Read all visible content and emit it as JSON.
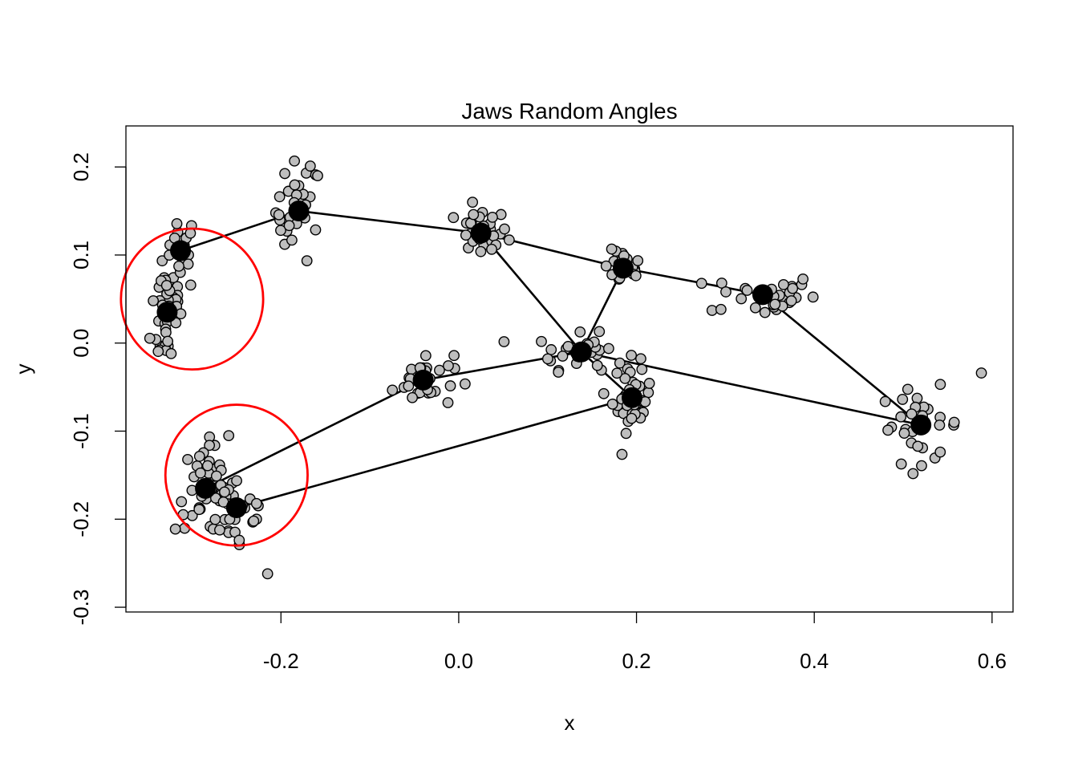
{
  "chart_data": {
    "type": "scatter",
    "title": "Jaws Random Angles",
    "xlabel": "x",
    "ylabel": "y",
    "xlim": [
      -0.3744,
      0.6236
    ],
    "ylim": [
      -0.3054,
      0.2466
    ],
    "x_ticks": [
      -0.2,
      0.0,
      0.2,
      0.4,
      0.6
    ],
    "x_tick_labels": [
      "-0.2",
      "0.0",
      "0.2",
      "0.4",
      "0.6"
    ],
    "y_ticks": [
      -0.3,
      -0.2,
      -0.1,
      0.0,
      0.1,
      0.2
    ],
    "y_tick_labels": [
      "-0.3",
      "-0.2",
      "-0.1",
      "0.0",
      "0.1",
      "0.2"
    ],
    "grid": false,
    "legend": "none",
    "colors": {
      "cloud_fill": "#bebebe",
      "outline": "#000000",
      "mean_point": "#000000",
      "highlight_circle": "#ff0000"
    },
    "mean_points": [
      {
        "x": -0.313,
        "y": 0.105
      },
      {
        "x": -0.18,
        "y": 0.15
      },
      {
        "x": 0.025,
        "y": 0.125
      },
      {
        "x": 0.185,
        "y": 0.085
      },
      {
        "x": 0.342,
        "y": 0.055
      },
      {
        "x": -0.328,
        "y": 0.035
      },
      {
        "x": 0.138,
        "y": -0.01
      },
      {
        "x": -0.04,
        "y": -0.042
      },
      {
        "x": 0.195,
        "y": -0.062
      },
      {
        "x": 0.52,
        "y": -0.093
      },
      {
        "x": -0.285,
        "y": -0.165
      },
      {
        "x": -0.25,
        "y": -0.187
      }
    ],
    "links": [
      [
        -0.313,
        0.105,
        -0.18,
        0.15
      ],
      [
        -0.18,
        0.15,
        0.025,
        0.125
      ],
      [
        0.025,
        0.125,
        0.185,
        0.085
      ],
      [
        0.185,
        0.085,
        0.342,
        0.055
      ],
      [
        0.342,
        0.055,
        0.52,
        -0.093
      ],
      [
        -0.313,
        0.105,
        -0.328,
        0.035
      ],
      [
        0.025,
        0.125,
        0.138,
        -0.01
      ],
      [
        0.138,
        -0.01,
        0.195,
        -0.062
      ],
      [
        0.185,
        0.085,
        0.138,
        -0.01
      ],
      [
        0.138,
        -0.01,
        0.52,
        -0.093
      ],
      [
        -0.04,
        -0.042,
        0.138,
        -0.01
      ],
      [
        -0.285,
        -0.165,
        -0.04,
        -0.042
      ],
      [
        -0.25,
        -0.187,
        0.195,
        -0.062
      ]
    ],
    "clusters": [
      {
        "cx": -0.313,
        "cy": 0.105,
        "n": 22,
        "sx": 0.01,
        "sy": 0.022
      },
      {
        "cx": -0.18,
        "cy": 0.15,
        "n": 30,
        "sx": 0.013,
        "sy": 0.028
      },
      {
        "cx": 0.025,
        "cy": 0.125,
        "n": 28,
        "sx": 0.015,
        "sy": 0.014
      },
      {
        "cx": 0.185,
        "cy": 0.085,
        "n": 24,
        "sx": 0.011,
        "sy": 0.01
      },
      {
        "cx": 0.342,
        "cy": 0.055,
        "n": 32,
        "sx": 0.03,
        "sy": 0.012
      },
      {
        "cx": -0.328,
        "cy": 0.035,
        "n": 38,
        "sx": 0.009,
        "sy": 0.035
      },
      {
        "cx": 0.138,
        "cy": -0.01,
        "n": 34,
        "sx": 0.025,
        "sy": 0.01
      },
      {
        "cx": -0.04,
        "cy": -0.042,
        "n": 32,
        "sx": 0.017,
        "sy": 0.016
      },
      {
        "cx": 0.195,
        "cy": -0.062,
        "n": 34,
        "sx": 0.011,
        "sy": 0.019
      },
      {
        "cx": 0.52,
        "cy": -0.093,
        "n": 30,
        "sx": 0.023,
        "sy": 0.021
      },
      {
        "cx": -0.285,
        "cy": -0.165,
        "n": 40,
        "sx": 0.017,
        "sy": 0.025
      },
      {
        "cx": -0.25,
        "cy": -0.187,
        "n": 34,
        "sx": 0.02,
        "sy": 0.025
      }
    ],
    "outliers": [
      {
        "x": 0.588,
        "y": -0.034
      },
      {
        "x": -0.167,
        "y": 0.201
      },
      {
        "x": -0.215,
        "y": -0.262
      }
    ],
    "annotations": [
      {
        "type": "circle",
        "cx": -0.3,
        "cy": 0.05,
        "rx": 0.08,
        "ry": 0.08
      },
      {
        "type": "circle",
        "cx": -0.25,
        "cy": -0.15,
        "rx": 0.08,
        "ry": 0.08
      }
    ]
  }
}
